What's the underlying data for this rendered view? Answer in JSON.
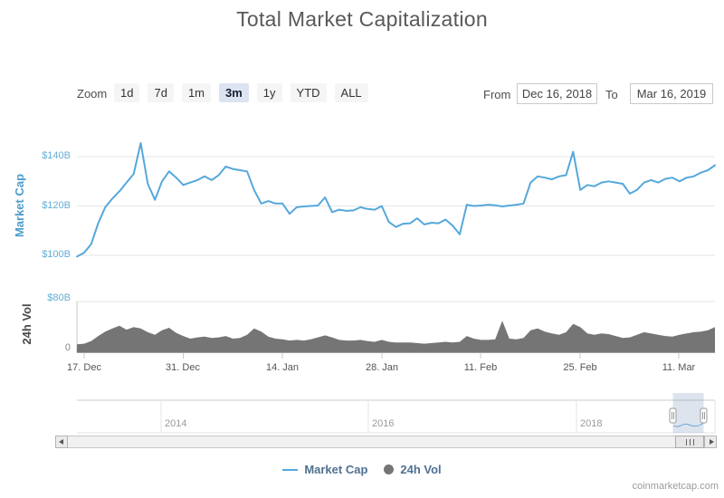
{
  "header": {
    "title": "Total Market Capitalization"
  },
  "toolbar": {
    "zoom_label": "Zoom",
    "zoom_buttons": [
      {
        "label": "1d",
        "selected": false
      },
      {
        "label": "7d",
        "selected": false
      },
      {
        "label": "1m",
        "selected": false
      },
      {
        "label": "3m",
        "selected": true
      },
      {
        "label": "1y",
        "selected": false
      },
      {
        "label": "YTD",
        "selected": false
      },
      {
        "label": "ALL",
        "selected": false
      }
    ],
    "from_label": "From",
    "from_value": "Dec 16, 2018",
    "to_label": "To",
    "to_value": "Mar 16, 2019"
  },
  "chart_data": [
    {
      "type": "line",
      "name": "Market Cap",
      "unit": "USD billions",
      "start_date": "2018-12-16",
      "end_date": "2019-03-16",
      "interval": "daily",
      "ylabel": "Market Cap",
      "yticks": [
        "$100B",
        "$120B",
        "$140B"
      ],
      "ylim": [
        95,
        150
      ],
      "grid": true,
      "values": [
        99.5,
        101,
        104.5,
        113,
        119.5,
        123,
        126,
        129.5,
        133,
        145.5,
        129,
        122.5,
        130,
        134,
        131.5,
        128.5,
        129.5,
        130.5,
        132,
        130.5,
        132.5,
        136,
        135,
        134.5,
        134,
        126.5,
        121,
        122,
        121,
        121,
        116.8,
        119.5,
        119.8,
        120,
        120.2,
        123.5,
        117.5,
        118.5,
        118,
        118.2,
        119.5,
        118.8,
        118.5,
        120,
        113.5,
        111.5,
        112.8,
        113,
        115,
        112.5,
        113.2,
        113,
        114.5,
        112,
        108.5,
        120.5,
        120,
        120.2,
        120.5,
        120.3,
        119.8,
        120.2,
        120.5,
        121,
        129.5,
        132,
        131.5,
        130.8,
        132,
        132.5,
        142,
        126.5,
        128.5,
        128,
        129.5,
        130,
        129.5,
        129,
        125,
        126.5,
        129.5,
        130.5,
        129.5,
        131,
        131.5,
        130,
        131.5,
        132,
        133.5,
        134.5,
        136.5
      ]
    },
    {
      "type": "area",
      "name": "24h Vol",
      "unit": "USD billions",
      "start_date": "2018-12-16",
      "end_date": "2019-03-16",
      "interval": "daily",
      "ylabel": "24h Vol",
      "yticks": [
        "0",
        "$80B"
      ],
      "ylim": [
        0,
        80
      ],
      "grid": true,
      "values": [
        13,
        14,
        18,
        26,
        33,
        38,
        42,
        36,
        40,
        38,
        32,
        28,
        35,
        39,
        31,
        26,
        22,
        24,
        25,
        23,
        24,
        26,
        22,
        23,
        28,
        38,
        33,
        25,
        22,
        21,
        19,
        20,
        19,
        21,
        24,
        27,
        24,
        20,
        19,
        19,
        20,
        18,
        17,
        20,
        17,
        16,
        16,
        16,
        15,
        14,
        15,
        16,
        17,
        16,
        17,
        26,
        22,
        20,
        20,
        21,
        50,
        22,
        21,
        23,
        35,
        38,
        33,
        30,
        28,
        32,
        45,
        40,
        30,
        28,
        30,
        29,
        26,
        23,
        24,
        28,
        32,
        30,
        28,
        26,
        25,
        28,
        30,
        32,
        33,
        35,
        40
      ]
    }
  ],
  "yaxis_market_cap": {
    "title": "Market Cap",
    "tick_140": "$140B",
    "tick_120": "$120B",
    "tick_100": "$100B"
  },
  "yaxis_volume": {
    "title": "24h Vol",
    "tick_80": "$80B",
    "tick_0": "0"
  },
  "xaxis": {
    "labels": [
      "17. Dec",
      "31. Dec",
      "14. Jan",
      "28. Jan",
      "11. Feb",
      "25. Feb",
      "11. Mar"
    ]
  },
  "navigator": {
    "years": [
      "2014",
      "2016",
      "2018"
    ]
  },
  "legend": {
    "items": [
      {
        "label": "Market Cap",
        "symbol": "line",
        "color": "#55a8db"
      },
      {
        "label": "24h Vol",
        "symbol": "circle",
        "color": "#757575"
      }
    ]
  },
  "attribution": "coinmarketcap.com",
  "colors": {
    "line_blue": "#55a8db",
    "axis_label_blue": "#64add6",
    "axis_title_blue": "#4e9ccc",
    "volume_gray": "#757575",
    "grid_gray": "#e6e6e6",
    "selected_button_bg": "#dce3f1",
    "legend_text": "#4e7191",
    "navigator_mask": "#6586b3"
  }
}
